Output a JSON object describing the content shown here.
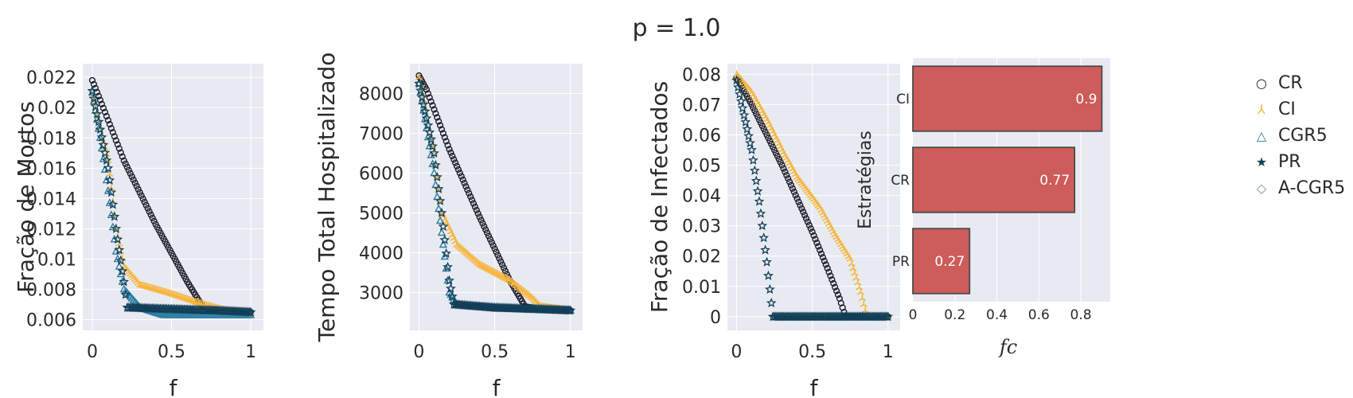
{
  "figure": {
    "title": "p = 1.0"
  },
  "colors": {
    "CR": "#1c1c2a",
    "CI": "#f6b53d",
    "CGR5": "#2d7ea3",
    "PR": "#123f57",
    "A-CGR5": "#6d8fa7",
    "bar": "#cd5c5a",
    "plot_bg": "#e8eaf2",
    "grid": "#ffffff"
  },
  "legend": [
    {
      "name": "CR",
      "icon": "circle-icon"
    },
    {
      "name": "CI",
      "icon": "tri-y-icon"
    },
    {
      "name": "CGR5",
      "icon": "triangle-icon"
    },
    {
      "name": "PR",
      "icon": "star-icon"
    },
    {
      "name": "A-CGR5",
      "icon": "diamond-icon"
    }
  ],
  "chart_data": [
    {
      "type": "scatter",
      "xlabel": "f",
      "ylabel": "Fração de Mortos",
      "xlim": [
        -0.06,
        1.08
      ],
      "ylim": [
        0.0053,
        0.0229
      ],
      "xticks": [
        0,
        0.5,
        1
      ],
      "xtick_labels": [
        "0",
        "0.5",
        "1"
      ],
      "yticks": [
        0.006,
        0.008,
        0.01,
        0.012,
        0.014,
        0.016,
        0.018,
        0.02,
        0.022
      ],
      "ytick_labels": [
        "0.006",
        "0.008",
        "0.01",
        "0.012",
        "0.014",
        "0.016",
        "0.018",
        "0.02",
        "0.022"
      ],
      "series": [
        {
          "name": "CR",
          "points": [
            [
              0,
              0.0218
            ],
            [
              0.05,
              0.0205
            ],
            [
              0.2,
              0.0165
            ],
            [
              0.4,
              0.0123
            ],
            [
              0.6,
              0.0085
            ],
            [
              0.7,
              0.0068
            ],
            [
              0.8,
              0.0066
            ],
            [
              1.0,
              0.0065
            ]
          ]
        },
        {
          "name": "CI",
          "points": [
            [
              0,
              0.0208
            ],
            [
              0.1,
              0.0165
            ],
            [
              0.15,
              0.012
            ],
            [
              0.2,
              0.0095
            ],
            [
              0.3,
              0.0083
            ],
            [
              0.5,
              0.0077
            ],
            [
              0.7,
              0.007
            ],
            [
              0.85,
              0.0066
            ],
            [
              1.0,
              0.0065
            ]
          ]
        },
        {
          "name": "CGR5",
          "points": [
            [
              0,
              0.021
            ],
            [
              0.05,
              0.018
            ],
            [
              0.1,
              0.0145
            ],
            [
              0.15,
              0.0105
            ],
            [
              0.2,
              0.008
            ],
            [
              0.3,
              0.0068
            ],
            [
              0.45,
              0.0063
            ],
            [
              0.6,
              0.0063
            ],
            [
              1.0,
              0.0063
            ]
          ]
        },
        {
          "name": "PR",
          "points": [
            [
              0,
              0.0211
            ],
            [
              0.1,
              0.016
            ],
            [
              0.15,
              0.012
            ],
            [
              0.2,
              0.0085
            ],
            [
              0.22,
              0.0068
            ],
            [
              0.5,
              0.0067
            ],
            [
              0.8,
              0.0066
            ],
            [
              1.0,
              0.0065
            ]
          ]
        }
      ]
    },
    {
      "type": "scatter",
      "xlabel": "f",
      "ylabel": "Tempo Total Hospitalizado",
      "xlim": [
        -0.06,
        1.08
      ],
      "ylim": [
        2050,
        8750
      ],
      "xticks": [
        0,
        0.5,
        1
      ],
      "xtick_labels": [
        "0",
        "0.5",
        "1"
      ],
      "yticks": [
        3000,
        4000,
        5000,
        6000,
        7000,
        8000
      ],
      "ytick_labels": [
        "3000",
        "4000",
        "5000",
        "6000",
        "7000",
        "8000"
      ],
      "series": [
        {
          "name": "CR",
          "points": [
            [
              0,
              8450
            ],
            [
              0.05,
              8100
            ],
            [
              0.2,
              6600
            ],
            [
              0.4,
              4900
            ],
            [
              0.6,
              3300
            ],
            [
              0.7,
              2650
            ],
            [
              0.8,
              2580
            ],
            [
              1.0,
              2550
            ]
          ]
        },
        {
          "name": "CI",
          "points": [
            [
              0,
              8400
            ],
            [
              0.1,
              6500
            ],
            [
              0.15,
              5000
            ],
            [
              0.25,
              4200
            ],
            [
              0.4,
              3700
            ],
            [
              0.6,
              3300
            ],
            [
              0.75,
              2850
            ],
            [
              0.8,
              2650
            ],
            [
              1.0,
              2550
            ]
          ]
        },
        {
          "name": "CGR5",
          "points": [
            [
              0,
              8250
            ],
            [
              0.1,
              6000
            ],
            [
              0.2,
              3000
            ],
            [
              0.25,
              2700
            ],
            [
              0.5,
              2600
            ],
            [
              1.0,
              2550
            ]
          ]
        },
        {
          "name": "PR",
          "points": [
            [
              0,
              8250
            ],
            [
              0.1,
              6500
            ],
            [
              0.15,
              5000
            ],
            [
              0.2,
              3300
            ],
            [
              0.23,
              2700
            ],
            [
              0.5,
              2620
            ],
            [
              0.8,
              2580
            ],
            [
              1.0,
              2550
            ]
          ]
        }
      ]
    },
    {
      "type": "scatter",
      "xlabel": "f",
      "ylabel": "Fração de Infectados",
      "xlim": [
        -0.06,
        1.08
      ],
      "ylim": [
        -0.0045,
        0.0835
      ],
      "xticks": [
        0,
        0.5,
        1
      ],
      "xtick_labels": [
        "0",
        "0.5",
        "1"
      ],
      "yticks": [
        0,
        0.01,
        0.02,
        0.03,
        0.04,
        0.05,
        0.06,
        0.07,
        0.08
      ],
      "ytick_labels": [
        "0",
        "0.01",
        "0.02",
        "0.03",
        "0.04",
        "0.05",
        "0.06",
        "0.07",
        "0.08"
      ],
      "series": [
        {
          "name": "CR",
          "points": [
            [
              0,
              0.079
            ],
            [
              0.1,
              0.07
            ],
            [
              0.3,
              0.05
            ],
            [
              0.5,
              0.028
            ],
            [
              0.6,
              0.016
            ],
            [
              0.68,
              0.006
            ],
            [
              0.72,
              0.0
            ],
            [
              1.0,
              0.0
            ]
          ]
        },
        {
          "name": "CI",
          "points": [
            [
              0,
              0.08
            ],
            [
              0.1,
              0.074
            ],
            [
              0.2,
              0.065
            ],
            [
              0.3,
              0.055
            ],
            [
              0.4,
              0.046
            ],
            [
              0.55,
              0.036
            ],
            [
              0.65,
              0.027
            ],
            [
              0.75,
              0.019
            ],
            [
              0.82,
              0.008
            ],
            [
              0.86,
              0.0
            ],
            [
              1.0,
              0.0
            ]
          ]
        },
        {
          "name": "PR",
          "points": [
            [
              0,
              0.078
            ],
            [
              0.1,
              0.055
            ],
            [
              0.15,
              0.038
            ],
            [
              0.2,
              0.018
            ],
            [
              0.24,
              0.0
            ],
            [
              0.5,
              0.0
            ],
            [
              1.0,
              0.0
            ]
          ]
        }
      ]
    },
    {
      "type": "bar",
      "orientation": "horizontal",
      "xlabel": "fc",
      "ylabel": "Estratégias",
      "categories": [
        "CI",
        "CR",
        "PR"
      ],
      "values": [
        0.9,
        0.77,
        0.27
      ],
      "value_labels": [
        "0.9",
        "0.77",
        "0.27"
      ],
      "xlim": [
        0,
        0.94
      ],
      "xticks": [
        0,
        0.2,
        0.4,
        0.6,
        0.8
      ],
      "xtick_labels": [
        "0",
        "0.2",
        "0.4",
        "0.6",
        "0.8"
      ]
    }
  ]
}
